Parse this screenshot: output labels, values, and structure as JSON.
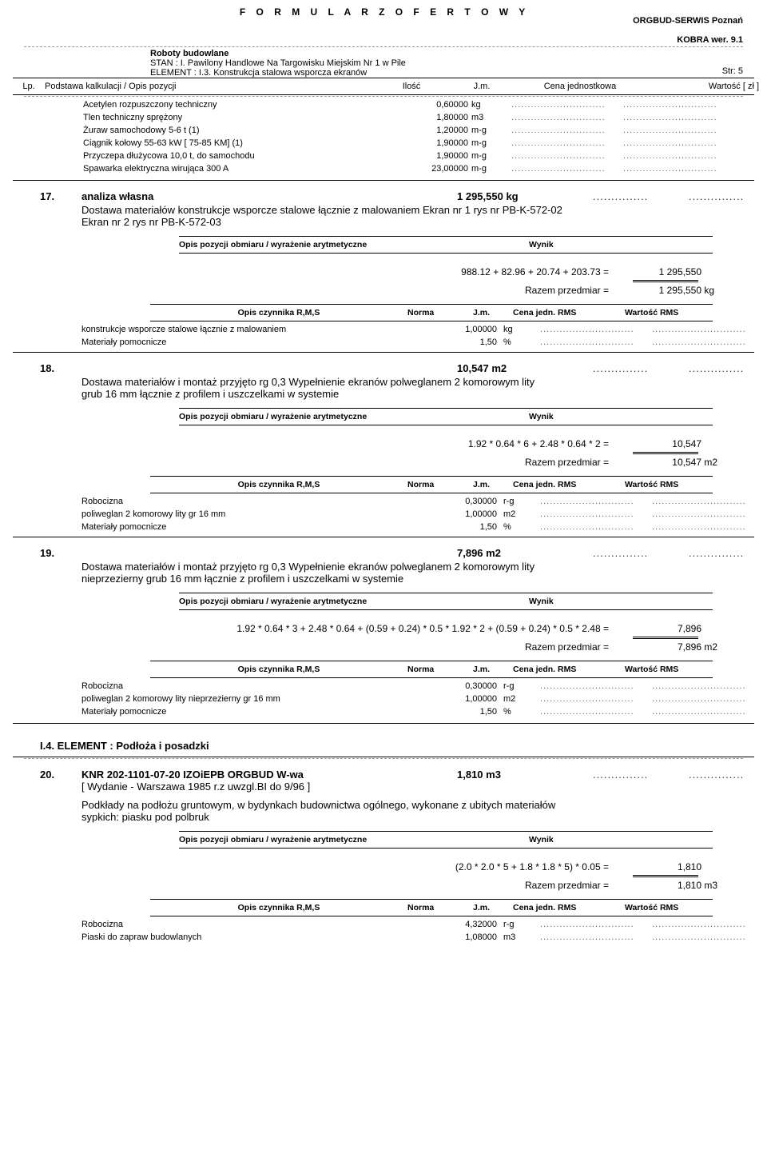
{
  "header": {
    "title": "F O R M U L A R Z   O F E R T O W Y",
    "right_line1": "ORGBUD-SERWIS Poznań",
    "right_line2": "KOBRA wer. 9.1"
  },
  "meta": {
    "line1_bold": "Roboty budowlane",
    "line2": "STAN :  I.  Pawilony Handlowe Na Targowisku Miejskim Nr 1 w Pile",
    "line3": "ELEMENT :  I.3.  Konstrukcja stalowa wsporcza ekranów",
    "page": "Str: 5"
  },
  "cols": {
    "lp": "Lp.",
    "opis": "Podstawa kalkulacji   /   Opis pozycji",
    "ilosc": "Ilość",
    "jm": "J.m.",
    "cena": "Cena jednostkowa",
    "wart": "Wartość [ zł ]"
  },
  "dots_short": ".............................",
  "dots_med": "...............",
  "mat_rows": [
    {
      "name": "Acetylen rozpuszczony techniczny",
      "qty": "0,60000",
      "unit": "kg"
    },
    {
      "name": "Tlen techniczny sprężony",
      "qty": "1,80000",
      "unit": "m3"
    },
    {
      "name": "Żuraw samochodowy   5-6 t  (1)",
      "qty": "1,20000",
      "unit": "m-g"
    },
    {
      "name": "Ciągnik kołowy  55-63 kW [ 75-85 KM] (1)",
      "qty": "1,90000",
      "unit": "m-g"
    },
    {
      "name": "Przyczepa dłużycowa 10,0 t, do samochodu",
      "qty": "1,90000",
      "unit": "m-g"
    },
    {
      "name": "Spawarka elektryczna wirująca 300 A",
      "qty": "23,00000",
      "unit": "m-g"
    }
  ],
  "obm_head": {
    "l": "Opis pozycji obmiaru    /    wyrażenie arytmetyczne",
    "r": "Wynik"
  },
  "rms_head": {
    "c1": "Opis czynnika R,M,S",
    "c2": "Norma",
    "c3": "J.m.",
    "c4": "Cena jedn. RMS",
    "c5": "Wartość RMS"
  },
  "razem_lbl": "Razem  przedmiar =",
  "sections": [
    {
      "num": "17.",
      "title": "analiza własna",
      "amount": "1 295,550 kg",
      "desc_lines": [
        "Dostawa materiałów konstrukcje wsporcze stalowe łącznie z malowaniem   Ekran nr 1 rys nr PB-K-572-02",
        "Ekran nr 2 rys nr PB-K-572-03"
      ],
      "expr": "988.12 + 82.96 + 20.74 + 203.73 =",
      "expr_val": "1 295,550",
      "razem_val": "1 295,550",
      "razem_unit": "kg",
      "rms": [
        {
          "name": "konstrukcje wsporcze stalowe  łącznie z malowaniem",
          "qty": "1,00000",
          "unit": "kg"
        },
        {
          "name": "Materiały pomocnicze",
          "qty": "1,50",
          "unit": "%"
        }
      ]
    },
    {
      "num": "18.",
      "title": "",
      "amount": "10,547 m2",
      "desc_lines": [
        "Dostawa materiałów i montaż przyjęto rg 0,3 Wypełnienie ekranów polweglanem 2 komorowym  lity",
        "grub 16 mm łącznie  z profilem i uszczelkami w systemie"
      ],
      "expr": "1.92 * 0.64 * 6 + 2.48 * 0.64 * 2 =",
      "expr_val": "10,547",
      "razem_val": "10,547",
      "razem_unit": "m2",
      "rms": [
        {
          "name": "Robocizna",
          "qty": "0,30000",
          "unit": "r-g"
        },
        {
          "name": "poliweglan 2 komorowy lity gr 16 mm",
          "qty": "1,00000",
          "unit": "m2"
        },
        {
          "name": "Materiały pomocnicze",
          "qty": "1,50",
          "unit": "%"
        }
      ]
    },
    {
      "num": "19.",
      "title": "",
      "amount": "7,896 m2",
      "desc_lines": [
        "Dostawa materiałów i montaż przyjęto rg 0,3 Wypełnienie ekranów polweglanem 2 komorowym  lity",
        "nieprzezierny grub 16 mm łącznie  z profilem i uszczelkami w systemie"
      ],
      "expr": "1.92 * 0.64 * 3 + 2.48 * 0.64 + (0.59 + 0.24) * 0.5 * 1.92 * 2 + (0.59 + 0.24) * 0.5 * 2.48 =",
      "expr_val": "7,896",
      "razem_val": "7,896",
      "razem_unit": "m2",
      "rms": [
        {
          "name": "Robocizna",
          "qty": "0,30000",
          "unit": "r-g"
        },
        {
          "name": "poliweglan 2 komorowy lity nieprzezierny gr 16 mm",
          "qty": "1,00000",
          "unit": "m2"
        },
        {
          "name": "Materiały pomocnicze",
          "qty": "1,50",
          "unit": "%"
        }
      ]
    }
  ],
  "element_head": "I.4.   ELEMENT :   Podłoża i posadzki",
  "sec20": {
    "num": "20.",
    "title": "KNR  202-1101-07-20  IZOiEPB ORGBUD W-wa",
    "sub": "[ Wydanie - Warszawa 1985 r.z uwzgl.BI do 9/96 ]",
    "amount": "1,810 m3",
    "desc_lines": [
      "Podkłady na podłożu gruntowym, w bydynkach budownictwa ogólnego, wykonane z ubitych materiałów",
      "sypkich: piasku pod polbruk"
    ],
    "expr": "(2.0 * 2.0 * 5 + 1.8 * 1.8 * 5) * 0.05 =",
    "expr_val": "1,810",
    "razem_val": "1,810",
    "razem_unit": "m3",
    "rms": [
      {
        "name": "Robocizna",
        "qty": "4,32000",
        "unit": "r-g"
      },
      {
        "name": "Piaski do zapraw  budowlanych",
        "qty": "1,08000",
        "unit": "m3"
      }
    ]
  }
}
